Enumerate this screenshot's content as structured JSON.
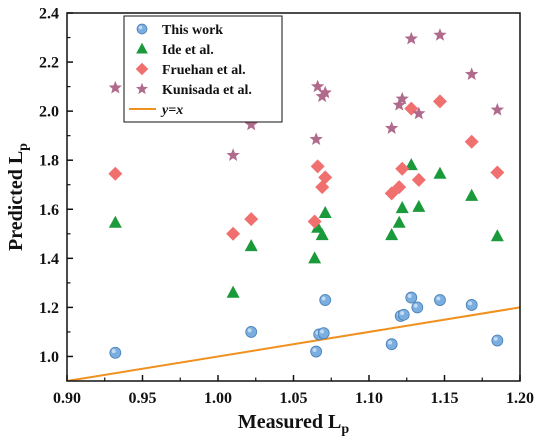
{
  "chart_data": {
    "type": "scatter",
    "xlabel": "Measured L",
    "xlabel_sub": "p",
    "ylabel": "Predicted L",
    "ylabel_sub": "p",
    "xlim": [
      0.9,
      1.2
    ],
    "ylim": [
      0.9,
      2.4
    ],
    "xticks": [
      "0.90",
      "0.95",
      "1.00",
      "1.05",
      "1.10",
      "1.15",
      "1.20"
    ],
    "yticks": [
      "1.0",
      "1.2",
      "1.4",
      "1.6",
      "1.8",
      "2.0",
      "2.2",
      "2.4"
    ],
    "legend_position": "top-left",
    "series": [
      {
        "name": "This work",
        "marker": "circle",
        "color": "#7aaee0",
        "points": [
          [
            0.932,
            1.015
          ],
          [
            1.022,
            1.1
          ],
          [
            1.065,
            1.02
          ],
          [
            1.067,
            1.09
          ],
          [
            1.07,
            1.095
          ],
          [
            1.071,
            1.23
          ],
          [
            1.115,
            1.05
          ],
          [
            1.121,
            1.165
          ],
          [
            1.123,
            1.17
          ],
          [
            1.128,
            1.24
          ],
          [
            1.132,
            1.2
          ],
          [
            1.147,
            1.23
          ],
          [
            1.168,
            1.21
          ],
          [
            1.185,
            1.065
          ]
        ]
      },
      {
        "name": "Ide et al.",
        "marker": "triangle",
        "color": "#1a9a3a",
        "points": [
          [
            0.932,
            1.545
          ],
          [
            1.01,
            1.26
          ],
          [
            1.022,
            1.45
          ],
          [
            1.064,
            1.4
          ],
          [
            1.066,
            1.525
          ],
          [
            1.069,
            1.495
          ],
          [
            1.071,
            1.585
          ],
          [
            1.115,
            1.495
          ],
          [
            1.12,
            1.545
          ],
          [
            1.122,
            1.605
          ],
          [
            1.128,
            1.78
          ],
          [
            1.133,
            1.61
          ],
          [
            1.147,
            1.745
          ],
          [
            1.168,
            1.655
          ],
          [
            1.185,
            1.49
          ]
        ]
      },
      {
        "name": "Fruehan et al.",
        "marker": "diamond",
        "color": "#f07070",
        "points": [
          [
            0.932,
            1.745
          ],
          [
            1.01,
            1.5
          ],
          [
            1.022,
            1.56
          ],
          [
            1.064,
            1.55
          ],
          [
            1.066,
            1.775
          ],
          [
            1.069,
            1.69
          ],
          [
            1.071,
            1.73
          ],
          [
            1.115,
            1.665
          ],
          [
            1.12,
            1.69
          ],
          [
            1.122,
            1.765
          ],
          [
            1.128,
            2.01
          ],
          [
            1.133,
            1.72
          ],
          [
            1.147,
            2.04
          ],
          [
            1.168,
            1.875
          ],
          [
            1.185,
            1.75
          ]
        ]
      },
      {
        "name": "Kunisada et al.",
        "marker": "star",
        "color": "#b06a8c",
        "points": [
          [
            0.932,
            2.095
          ],
          [
            1.01,
            1.82
          ],
          [
            1.022,
            1.945
          ],
          [
            1.065,
            1.885
          ],
          [
            1.066,
            2.1
          ],
          [
            1.069,
            2.06
          ],
          [
            1.071,
            2.075
          ],
          [
            1.115,
            1.93
          ],
          [
            1.12,
            2.025
          ],
          [
            1.122,
            2.05
          ],
          [
            1.128,
            2.295
          ],
          [
            1.133,
            1.99
          ],
          [
            1.147,
            2.31
          ],
          [
            1.168,
            2.15
          ],
          [
            1.185,
            2.005
          ]
        ]
      }
    ],
    "line": {
      "name": "y=x",
      "color": "#f0901e",
      "points": [
        [
          0.9,
          0.9
        ],
        [
          1.2,
          1.2
        ]
      ]
    }
  }
}
